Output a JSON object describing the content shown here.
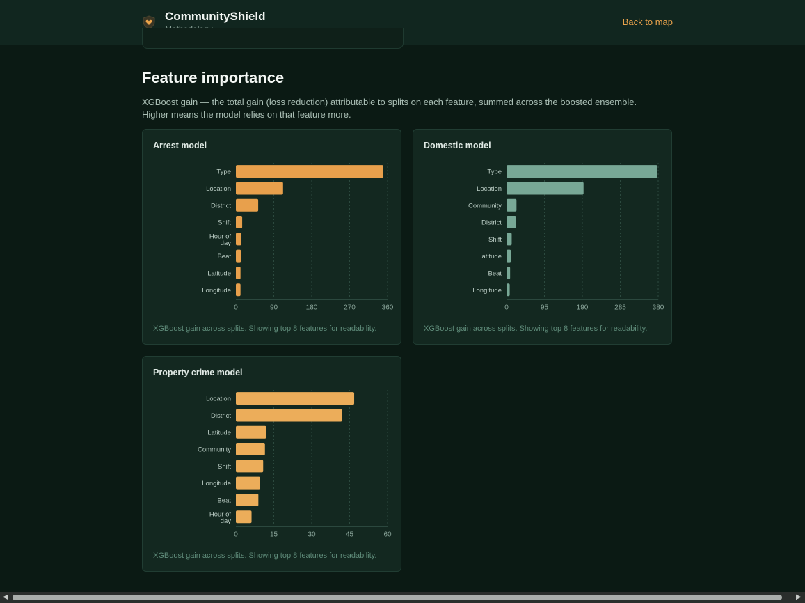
{
  "header": {
    "app_name": "CommunityShield",
    "subtitle": "Methodology",
    "back_link": "Back to map"
  },
  "section": {
    "title": "Feature importance",
    "description_line1": "XGBoost gain — the total gain (loss reduction) attributable to splits on each feature, summed across the boosted ensemble.",
    "description_line2": "Higher means the model relies on that feature more."
  },
  "colors": {
    "arrest": "#e8a04c",
    "domestic": "#78a896",
    "property": "#ecad5a"
  },
  "chart_data": [
    {
      "type": "bar",
      "orientation": "horizontal",
      "title": "Arrest model",
      "categories": [
        "Type",
        "Location",
        "District",
        "Shift",
        "Hour of day",
        "Beat",
        "Latitude",
        "Longitude"
      ],
      "values": [
        350,
        112,
        53,
        15,
        13,
        12,
        11,
        11
      ],
      "xlim": [
        0,
        360
      ],
      "ticks": [
        0,
        90,
        180,
        270,
        360
      ],
      "note": "XGBoost gain across splits. Showing top 8 features for readability."
    },
    {
      "type": "bar",
      "orientation": "horizontal",
      "title": "Domestic model",
      "categories": [
        "Type",
        "Location",
        "Community",
        "District",
        "Shift",
        "Latitude",
        "Beat",
        "Longitude"
      ],
      "values": [
        378,
        193,
        25,
        24,
        13,
        11,
        9,
        8
      ],
      "xlim": [
        0,
        380
      ],
      "ticks": [
        0,
        95,
        190,
        285,
        380
      ],
      "note": "XGBoost gain across splits. Showing top 8 features for readability."
    },
    {
      "type": "bar",
      "orientation": "horizontal",
      "title": "Property crime model",
      "categories": [
        "Location",
        "District",
        "Latitude",
        "Community",
        "Shift",
        "Longitude",
        "Beat",
        "Hour of day"
      ],
      "values": [
        46.8,
        42.0,
        12.0,
        11.5,
        10.8,
        9.6,
        8.9,
        6.2
      ],
      "xlim": [
        0,
        60
      ],
      "ticks": [
        0,
        15,
        30,
        45,
        60
      ],
      "note": "XGBoost gain across splits. Showing top 8 features for readability."
    }
  ]
}
